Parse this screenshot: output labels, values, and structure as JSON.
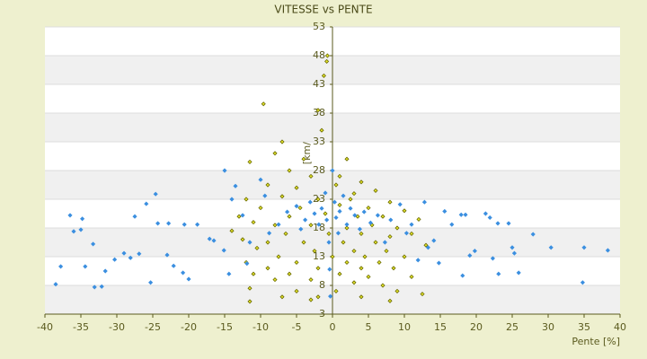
{
  "chart_data": {
    "type": "scatter",
    "title": "VITESSE vs PENTE",
    "x_label": "Pente [%]",
    "y_label": "[km/h]",
    "xlim": [
      -40,
      40
    ],
    "xticks": [
      -40,
      -35,
      -30,
      -25,
      -20,
      -15,
      -10,
      -5,
      0,
      5,
      10,
      15,
      20,
      25,
      30,
      35,
      40
    ],
    "ylim": [
      3,
      53
    ],
    "yticks": [
      3,
      8,
      13,
      18,
      23,
      28,
      33,
      38,
      43,
      48,
      53
    ],
    "grid": true,
    "series": [
      {
        "color": "#e4e42a",
        "edge": "#6a6a00",
        "x": [
          -9.6,
          -0.8,
          -0.7,
          -1.2,
          -2,
          -1.5,
          -7,
          -8,
          -4,
          -11.5,
          2,
          -6,
          -3,
          1,
          4,
          -9,
          -5,
          0.5,
          3,
          6,
          -12,
          -7,
          -2,
          2.5,
          8,
          -10,
          -4.5,
          1,
          5,
          10,
          -13,
          -6,
          -1,
          3.5,
          7,
          12,
          -11,
          -8,
          -3,
          2,
          5.5,
          9,
          -14,
          -6.5,
          -0.5,
          4,
          8,
          11,
          -12.5,
          -9,
          -4,
          1.5,
          6,
          13,
          -10.5,
          -2.5,
          3,
          7.5,
          -7.5,
          0,
          4.5,
          10,
          -12,
          -5,
          2,
          6.5,
          -9,
          -2,
          4,
          8.5,
          -11,
          -6,
          1,
          5,
          11,
          -8,
          -3,
          3,
          7,
          -11.5,
          -5,
          0.5,
          9,
          -7,
          -2,
          4,
          12.5,
          -11.5,
          -3,
          8
        ],
        "values": [
          39.6,
          47,
          48,
          44.5,
          38.5,
          35,
          33,
          31,
          30,
          29.5,
          30,
          28,
          27,
          27,
          26,
          25.5,
          25,
          25.5,
          24,
          24.5,
          23,
          23.5,
          23,
          23,
          22.5,
          21.5,
          21.5,
          22,
          21.5,
          21,
          20,
          20,
          20.5,
          20,
          20,
          19.5,
          19,
          18.5,
          18.5,
          18,
          18.5,
          18,
          17.5,
          17,
          17,
          17,
          16.5,
          17,
          16,
          15.5,
          15.5,
          15.5,
          15.5,
          15,
          14.5,
          14,
          14,
          14,
          13,
          13,
          13,
          13,
          12,
          12,
          12,
          12,
          11,
          11,
          11,
          11,
          10,
          10,
          10,
          9.5,
          9.5,
          9,
          9,
          8.5,
          8,
          7.5,
          7,
          7,
          7,
          6,
          6,
          6,
          6.5,
          5.2,
          5.5,
          5.3
        ]
      },
      {
        "color": "#3b8fe0",
        "edge": "#3b8fe0",
        "x": [
          -38.5,
          -37.8,
          -36.5,
          -36,
          -34.8,
          -35,
          -34.4,
          -33.3,
          -33.1,
          -32.1,
          -31.6,
          -30.3,
          -29,
          -28.1,
          -27.5,
          -26.9,
          -25.9,
          -25.3,
          -24.6,
          -24.3,
          -23,
          -22.8,
          -22.1,
          -20.8,
          -20.6,
          -20,
          -18.8,
          -17.1,
          -16.5,
          -15.1,
          -14.4,
          -15,
          -14,
          -13.5,
          -12.5,
          -11.9,
          -11.5,
          -10,
          -9.4,
          -8.8,
          -7.5,
          -6.3,
          -5,
          -4.4,
          -3.8,
          -3.1,
          -2.5,
          -1.9,
          -1.5,
          -1,
          -0.8,
          -0.5,
          -0.4,
          -0.3,
          0,
          0.3,
          0.5,
          0.8,
          1,
          1.5,
          2,
          2.5,
          3.1,
          3.8,
          4.4,
          5.3,
          6.3,
          7.3,
          8.1,
          9.4,
          10.3,
          11,
          11.9,
          12.8,
          13.3,
          14.1,
          14.8,
          15.6,
          16.6,
          17.9,
          18.5,
          18.1,
          19.1,
          19.8,
          21.3,
          21.9,
          22.3,
          23,
          23.1,
          24.5,
          25,
          25.3,
          25.9,
          27.9,
          30.4,
          34.8,
          35,
          38.3
        ],
        "values": [
          8.2,
          11.3,
          20.2,
          17.4,
          19.6,
          17.7,
          11.3,
          15.2,
          7.7,
          7.8,
          10.5,
          12.5,
          13.6,
          12.8,
          20,
          13.5,
          22.2,
          8.5,
          23.9,
          18.8,
          13.3,
          18.8,
          11.4,
          10.2,
          18.6,
          9.1,
          18.6,
          16.1,
          15.8,
          14.1,
          10,
          28,
          23,
          25.3,
          20.2,
          11.8,
          15.5,
          26.4,
          23.6,
          17.1,
          18.6,
          20.8,
          21.8,
          17.8,
          19.4,
          22.5,
          20.5,
          18.6,
          21.4,
          24.1,
          19.4,
          15.5,
          10.8,
          6.1,
          28,
          22.5,
          19.8,
          17.1,
          20.9,
          23.6,
          18.6,
          21.4,
          20.2,
          17.8,
          20.8,
          18.9,
          20.2,
          15.5,
          19.4,
          22.1,
          17.1,
          18.6,
          12.4,
          22.5,
          14.6,
          15.8,
          11.9,
          20.9,
          18.6,
          20.3,
          20.3,
          9.7,
          13.2,
          14,
          20.5,
          19.8,
          12.7,
          18.8,
          10,
          18.8,
          14.6,
          13.6,
          10.2,
          16.9,
          14.6,
          8.5,
          14.6,
          14.1
        ]
      }
    ]
  }
}
